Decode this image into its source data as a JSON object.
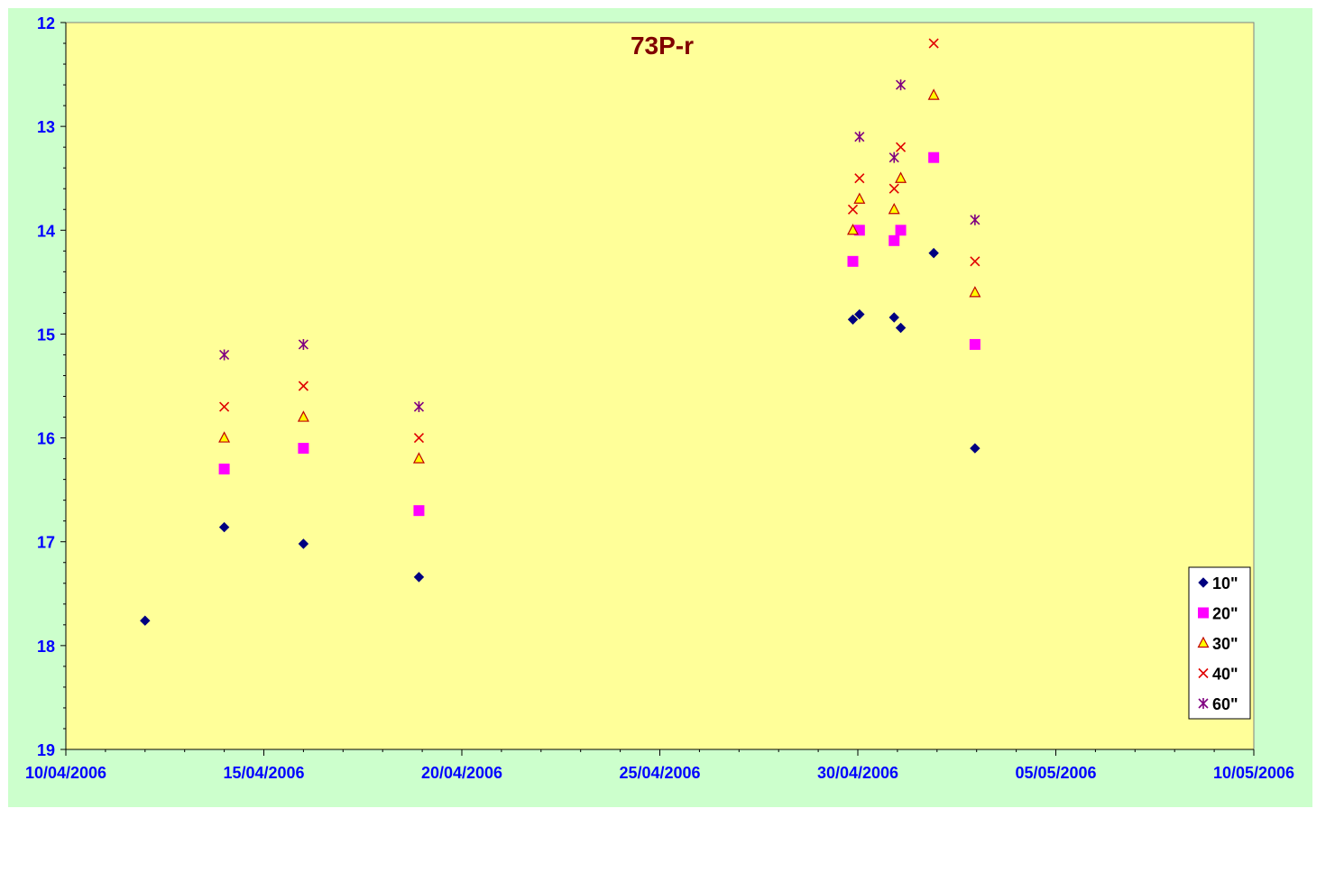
{
  "chart_data": {
    "type": "scatter",
    "title": "73P-r",
    "xlabel": "",
    "ylabel": "",
    "x_axis": {
      "type": "date",
      "min": "10/04/2006",
      "max": "10/05/2006",
      "major_ticks": [
        "10/04/2006",
        "15/04/2006",
        "20/04/2006",
        "25/04/2006",
        "30/04/2006",
        "05/05/2006",
        "10/05/2006"
      ]
    },
    "y_axis": {
      "min": 12,
      "max": 19,
      "reversed": true,
      "ticks": [
        12,
        13,
        14,
        15,
        16,
        17,
        18,
        19
      ]
    },
    "grid": false,
    "legend_position": "bottom-right",
    "series": [
      {
        "name": "10\"",
        "marker": "diamond",
        "color": "#000080",
        "points": [
          {
            "x": "12/04/2006",
            "y": 17.76
          },
          {
            "x": "14/04/2006",
            "y": 16.86
          },
          {
            "x": "16/04/2006",
            "y": 17.02
          },
          {
            "x": "18/04/2006 22:00",
            "y": 17.34
          },
          {
            "x": "29/04/2006 21:00",
            "y": 14.86
          },
          {
            "x": "30/04/2006 01:00",
            "y": 14.81
          },
          {
            "x": "30/04/2006 22:00",
            "y": 14.84
          },
          {
            "x": "01/05/2006 02:00",
            "y": 14.94
          },
          {
            "x": "01/05/2006 22:00",
            "y": 14.22
          },
          {
            "x": "02/05/2006 23:00",
            "y": 16.1
          }
        ]
      },
      {
        "name": "20\"",
        "marker": "square",
        "color": "#ff00ff",
        "points": [
          {
            "x": "14/04/2006",
            "y": 16.3
          },
          {
            "x": "16/04/2006",
            "y": 16.1
          },
          {
            "x": "18/04/2006 22:00",
            "y": 16.7
          },
          {
            "x": "29/04/2006 21:00",
            "y": 14.3
          },
          {
            "x": "30/04/2006 01:00",
            "y": 14.0
          },
          {
            "x": "30/04/2006 22:00",
            "y": 14.1
          },
          {
            "x": "01/05/2006 02:00",
            "y": 14.0
          },
          {
            "x": "01/05/2006 22:00",
            "y": 13.3
          },
          {
            "x": "02/05/2006 23:00",
            "y": 15.1
          }
        ]
      },
      {
        "name": "30\"",
        "marker": "triangle",
        "color": "#ffff00",
        "stroke": "#c00000",
        "points": [
          {
            "x": "14/04/2006",
            "y": 16.0
          },
          {
            "x": "16/04/2006",
            "y": 15.8
          },
          {
            "x": "18/04/2006 22:00",
            "y": 16.2
          },
          {
            "x": "29/04/2006 21:00",
            "y": 14.0
          },
          {
            "x": "30/04/2006 01:00",
            "y": 13.7
          },
          {
            "x": "30/04/2006 22:00",
            "y": 13.8
          },
          {
            "x": "01/05/2006 02:00",
            "y": 13.5
          },
          {
            "x": "01/05/2006 22:00",
            "y": 12.7
          },
          {
            "x": "02/05/2006 23:00",
            "y": 14.6
          }
        ]
      },
      {
        "name": "40\"",
        "marker": "x",
        "color": "#e00000",
        "points": [
          {
            "x": "14/04/2006",
            "y": 15.7
          },
          {
            "x": "16/04/2006",
            "y": 15.5
          },
          {
            "x": "18/04/2006 22:00",
            "y": 16.0
          },
          {
            "x": "29/04/2006 21:00",
            "y": 13.8
          },
          {
            "x": "30/04/2006 01:00",
            "y": 13.5
          },
          {
            "x": "30/04/2006 22:00",
            "y": 13.6
          },
          {
            "x": "01/05/2006 02:00",
            "y": 13.2
          },
          {
            "x": "01/05/2006 22:00",
            "y": 12.2
          },
          {
            "x": "02/05/2006 23:00",
            "y": 14.3
          }
        ]
      },
      {
        "name": "60\"",
        "marker": "star",
        "color": "#800080",
        "points": [
          {
            "x": "14/04/2006",
            "y": 15.2
          },
          {
            "x": "16/04/2006",
            "y": 15.1
          },
          {
            "x": "18/04/2006 22:00",
            "y": 15.7
          },
          {
            "x": "30/04/2006 01:00",
            "y": 13.1
          },
          {
            "x": "30/04/2006 22:00",
            "y": 13.3
          },
          {
            "x": "01/05/2006 02:00",
            "y": 12.6
          },
          {
            "x": "02/05/2006 23:00",
            "y": 13.9
          }
        ]
      }
    ]
  },
  "colors": {
    "outer_background": "#ccffcc",
    "plot_background": "#ffff99",
    "axis_text": "#0000ff",
    "title": "#800000"
  }
}
